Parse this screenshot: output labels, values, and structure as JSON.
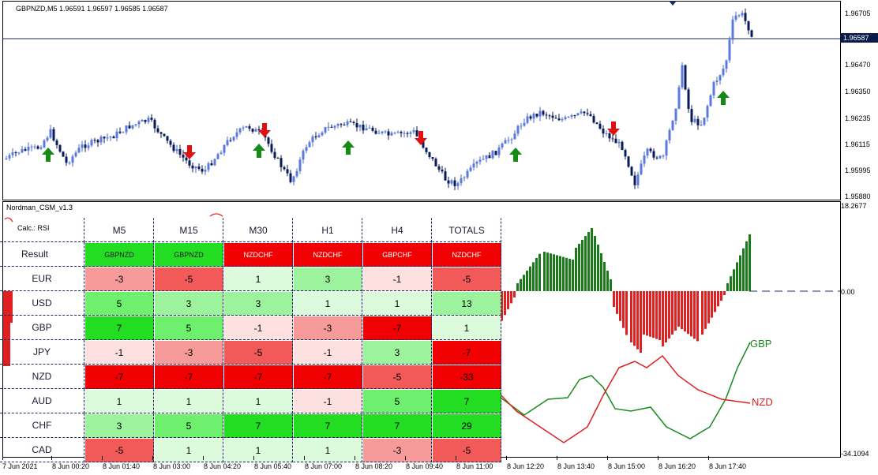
{
  "main_chart": {
    "symbol_info": "GBPNZD,M5  1.96591 1.96597 1.96585 1.96587",
    "price_labels": [
      "1.96705",
      "1.96587",
      "1.96470",
      "1.96350",
      "1.96235",
      "1.96115",
      "1.95995",
      "1.95880"
    ],
    "current_price": "1.96587"
  },
  "indicator": {
    "name": "Nordman_CSM_v1.3",
    "max_label": "18.2677",
    "zero_label": "0.00",
    "min_label": "-34.1094",
    "calc_label": "Calc.: RSI",
    "line_labels": {
      "gbp": "GBP",
      "nzd": "NZD"
    },
    "colors": {
      "up": "#1a7a1a",
      "down": "#e02020",
      "gbp_line": "#1a8a1a",
      "nzd_line": "#e02020"
    },
    "table": {
      "columns": [
        "M5",
        "M15",
        "M30",
        "H1",
        "H4",
        "TOTALS"
      ],
      "result_label": "Result",
      "result": [
        "GBPNZD",
        "GBPNZD",
        "NZDCHF",
        "NZDCHF",
        "GBPCHF",
        "NZDCHF"
      ],
      "rows": [
        {
          "name": "EUR",
          "values": [
            "-3",
            "-5",
            "1",
            "3",
            "-1",
            "-5"
          ]
        },
        {
          "name": "USD",
          "values": [
            "5",
            "3",
            "3",
            "1",
            "1",
            "13"
          ]
        },
        {
          "name": "GBP",
          "values": [
            "7",
            "5",
            "-1",
            "-3",
            "-7",
            "1"
          ]
        },
        {
          "name": "JPY",
          "values": [
            "-1",
            "-3",
            "-5",
            "-1",
            "3",
            "-7"
          ]
        },
        {
          "name": "NZD",
          "values": [
            "-7",
            "-7",
            "-7",
            "-7",
            "-5",
            "-33"
          ]
        },
        {
          "name": "AUD",
          "values": [
            "1",
            "1",
            "1",
            "-1",
            "5",
            "7"
          ]
        },
        {
          "name": "CHF",
          "values": [
            "3",
            "5",
            "7",
            "7",
            "7",
            "29"
          ]
        },
        {
          "name": "CAD",
          "values": [
            "-5",
            "1",
            "1",
            "1",
            "-3",
            "-5"
          ]
        }
      ]
    }
  },
  "time_axis": [
    "7 Jun 2021",
    "8 Jun 00:20",
    "8 Jun 01:40",
    "8 Jun 03:00",
    "8 Jun 04:20",
    "8 Jun 05:40",
    "8 Jun 07:00",
    "8 Jun 08:20",
    "8 Jun 09:40",
    "8 Jun 11:00",
    "8 Jun 12:20",
    "8 Jun 13:40",
    "8 Jun 15:00",
    "8 Jun 16:20",
    "8 Jun 17:40"
  ]
}
